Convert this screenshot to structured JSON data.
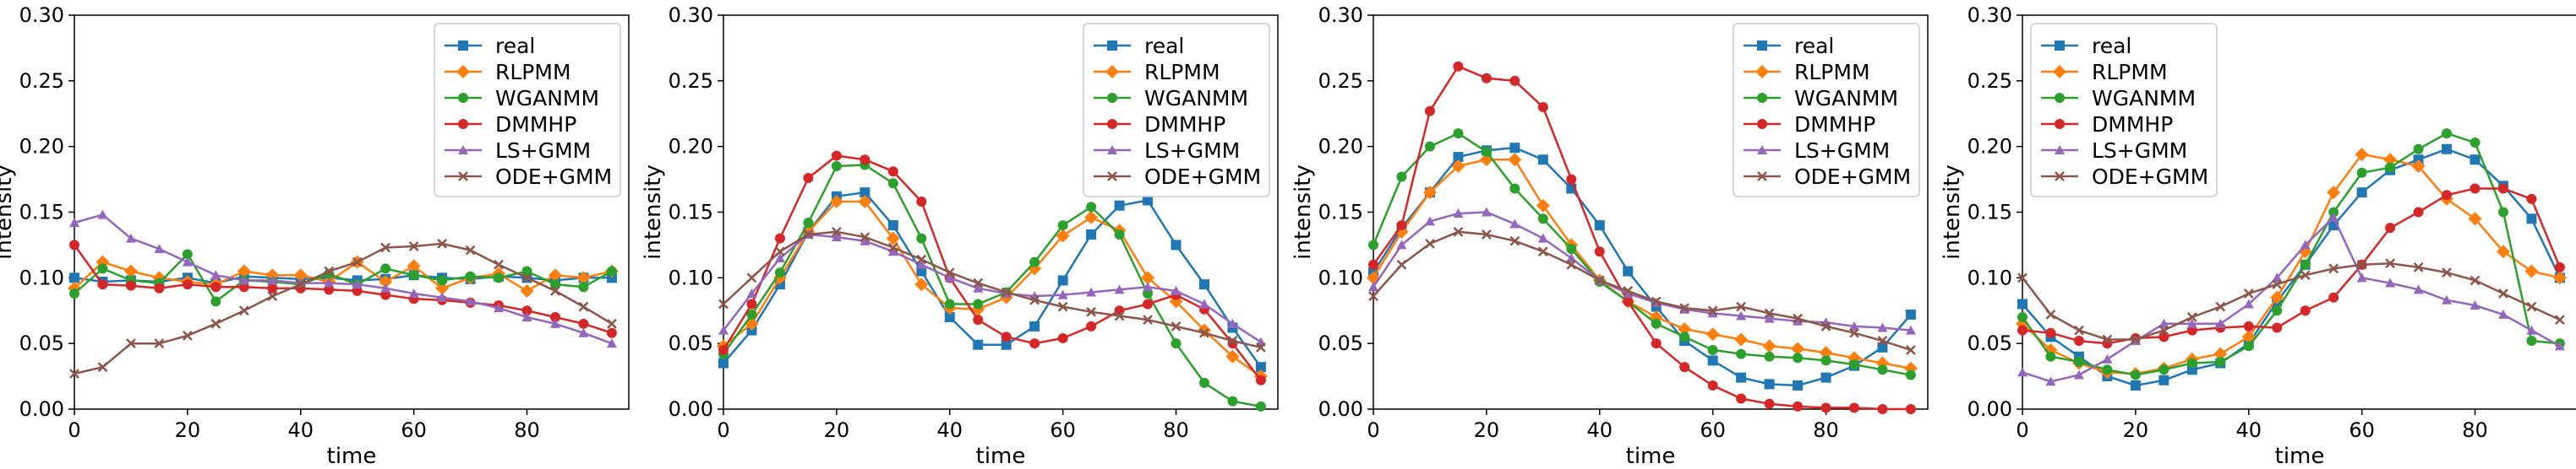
{
  "colors": {
    "real": "#1f77b4",
    "RLPMM": "#ff7f0e",
    "WGANMM": "#2ca02c",
    "DMMHP": "#d62728",
    "LS+GMM": "#9467bd",
    "ODE+GMM": "#8c564b"
  },
  "chart_data": [
    {
      "type": "line",
      "xlabel": "time",
      "ylabel": "intensity",
      "xlim": [
        0,
        98
      ],
      "ylim": [
        0,
        0.3
      ],
      "xticks": [
        "0",
        "20",
        "40",
        "60",
        "80"
      ],
      "yticks": [
        "0.00",
        "0.05",
        "0.10",
        "0.15",
        "0.20",
        "0.25",
        "0.30"
      ],
      "legend_position": "upper-right",
      "x": [
        0,
        5,
        10,
        15,
        20,
        25,
        30,
        35,
        40,
        45,
        50,
        55,
        60,
        65,
        70,
        75,
        80,
        85,
        90,
        95
      ],
      "series": [
        {
          "name": "real",
          "marker": "square",
          "values": [
            0.1,
            0.097,
            0.098,
            0.097,
            0.1,
            0.096,
            0.101,
            0.1,
            0.099,
            0.1,
            0.098,
            0.099,
            0.102,
            0.1,
            0.099,
            0.101,
            0.1,
            0.098,
            0.1,
            0.1
          ]
        },
        {
          "name": "RLPMM",
          "marker": "diamond",
          "values": [
            0.092,
            0.112,
            0.105,
            0.1,
            0.097,
            0.095,
            0.105,
            0.102,
            0.102,
            0.097,
            0.112,
            0.097,
            0.109,
            0.092,
            0.1,
            0.103,
            0.09,
            0.102,
            0.1,
            0.105
          ]
        },
        {
          "name": "WGANMM",
          "marker": "circle",
          "values": [
            0.088,
            0.107,
            0.098,
            0.096,
            0.118,
            0.082,
            0.098,
            0.097,
            0.095,
            0.103,
            0.095,
            0.107,
            0.102,
            0.098,
            0.101,
            0.1,
            0.105,
            0.095,
            0.093,
            0.105
          ]
        },
        {
          "name": "DMMHP",
          "marker": "circle",
          "values": [
            0.125,
            0.095,
            0.094,
            0.092,
            0.095,
            0.093,
            0.093,
            0.092,
            0.092,
            0.091,
            0.09,
            0.087,
            0.084,
            0.083,
            0.081,
            0.079,
            0.075,
            0.07,
            0.065,
            0.058
          ]
        },
        {
          "name": "LS+GMM",
          "marker": "triangle",
          "values": [
            0.142,
            0.148,
            0.13,
            0.122,
            0.112,
            0.102,
            0.098,
            0.098,
            0.096,
            0.096,
            0.095,
            0.092,
            0.088,
            0.085,
            0.082,
            0.077,
            0.07,
            0.065,
            0.058,
            0.05
          ]
        },
        {
          "name": "ODE+GMM",
          "marker": "x",
          "values": [
            0.027,
            0.032,
            0.05,
            0.05,
            0.056,
            0.065,
            0.075,
            0.086,
            0.095,
            0.105,
            0.112,
            0.123,
            0.124,
            0.126,
            0.121,
            0.11,
            0.1,
            0.09,
            0.078,
            0.065
          ]
        }
      ]
    },
    {
      "type": "line",
      "xlabel": "time",
      "ylabel": "intensity",
      "xlim": [
        0,
        98
      ],
      "ylim": [
        0,
        0.3
      ],
      "xticks": [
        "0",
        "20",
        "40",
        "60",
        "80"
      ],
      "yticks": [
        "0.00",
        "0.05",
        "0.10",
        "0.15",
        "0.20",
        "0.25",
        "0.30"
      ],
      "legend_position": "upper-right",
      "x": [
        0,
        5,
        10,
        15,
        20,
        25,
        30,
        35,
        40,
        45,
        50,
        55,
        60,
        65,
        70,
        75,
        80,
        85,
        90,
        95
      ],
      "series": [
        {
          "name": "real",
          "marker": "square",
          "values": [
            0.035,
            0.06,
            0.095,
            0.135,
            0.162,
            0.165,
            0.14,
            0.105,
            0.07,
            0.049,
            0.049,
            0.063,
            0.098,
            0.133,
            0.155,
            0.159,
            0.125,
            0.095,
            0.062,
            0.032
          ]
        },
        {
          "name": "RLPMM",
          "marker": "diamond",
          "values": [
            0.048,
            0.065,
            0.1,
            0.135,
            0.158,
            0.158,
            0.13,
            0.095,
            0.077,
            0.076,
            0.085,
            0.107,
            0.132,
            0.146,
            0.136,
            0.1,
            0.082,
            0.06,
            0.04,
            0.025
          ]
        },
        {
          "name": "WGANMM",
          "marker": "circle",
          "values": [
            0.042,
            0.072,
            0.104,
            0.142,
            0.185,
            0.186,
            0.172,
            0.13,
            0.08,
            0.08,
            0.089,
            0.112,
            0.14,
            0.154,
            0.133,
            0.088,
            0.05,
            0.02,
            0.006,
            0.002
          ]
        },
        {
          "name": "DMMHP",
          "marker": "circle",
          "values": [
            0.045,
            0.08,
            0.13,
            0.176,
            0.193,
            0.19,
            0.181,
            0.158,
            0.1,
            0.068,
            0.055,
            0.05,
            0.054,
            0.063,
            0.075,
            0.08,
            0.087,
            0.076,
            0.05,
            0.022
          ]
        },
        {
          "name": "LS+GMM",
          "marker": "triangle",
          "values": [
            0.06,
            0.088,
            0.115,
            0.133,
            0.131,
            0.128,
            0.12,
            0.11,
            0.1,
            0.092,
            0.088,
            0.086,
            0.087,
            0.089,
            0.091,
            0.093,
            0.09,
            0.08,
            0.065,
            0.051
          ]
        },
        {
          "name": "ODE+GMM",
          "marker": "x",
          "values": [
            0.08,
            0.1,
            0.12,
            0.133,
            0.135,
            0.131,
            0.123,
            0.114,
            0.104,
            0.096,
            0.089,
            0.083,
            0.078,
            0.074,
            0.071,
            0.068,
            0.063,
            0.058,
            0.052,
            0.047
          ]
        }
      ]
    },
    {
      "type": "line",
      "xlabel": "time",
      "ylabel": "intensity",
      "xlim": [
        0,
        98
      ],
      "ylim": [
        0,
        0.3
      ],
      "xticks": [
        "0",
        "20",
        "40",
        "60",
        "80"
      ],
      "yticks": [
        "0.00",
        "0.05",
        "0.10",
        "0.15",
        "0.20",
        "0.25",
        "0.30"
      ],
      "legend_position": "upper-right",
      "x": [
        0,
        5,
        10,
        15,
        20,
        25,
        30,
        35,
        40,
        45,
        50,
        55,
        60,
        65,
        70,
        75,
        80,
        85,
        90,
        95
      ],
      "series": [
        {
          "name": "real",
          "marker": "square",
          "values": [
            0.104,
            0.138,
            0.165,
            0.192,
            0.197,
            0.199,
            0.19,
            0.168,
            0.14,
            0.105,
            0.078,
            0.052,
            0.037,
            0.024,
            0.019,
            0.018,
            0.024,
            0.033,
            0.047,
            0.072
          ]
        },
        {
          "name": "RLPMM",
          "marker": "diamond",
          "values": [
            0.1,
            0.135,
            0.165,
            0.185,
            0.19,
            0.19,
            0.155,
            0.125,
            0.098,
            0.082,
            0.07,
            0.061,
            0.057,
            0.053,
            0.048,
            0.046,
            0.043,
            0.039,
            0.035,
            0.031
          ]
        },
        {
          "name": "WGANMM",
          "marker": "circle",
          "values": [
            0.125,
            0.177,
            0.2,
            0.21,
            0.196,
            0.168,
            0.145,
            0.122,
            0.097,
            0.082,
            0.065,
            0.055,
            0.045,
            0.042,
            0.04,
            0.039,
            0.037,
            0.034,
            0.03,
            0.026
          ]
        },
        {
          "name": "DMMHP",
          "marker": "circle",
          "values": [
            0.11,
            0.14,
            0.227,
            0.261,
            0.252,
            0.25,
            0.23,
            0.175,
            0.12,
            0.082,
            0.05,
            0.032,
            0.018,
            0.008,
            0.004,
            0.002,
            0.001,
            0.001,
            0.0,
            0.0
          ]
        },
        {
          "name": "LS+GMM",
          "marker": "triangle",
          "values": [
            0.093,
            0.125,
            0.143,
            0.149,
            0.15,
            0.141,
            0.13,
            0.115,
            0.098,
            0.088,
            0.081,
            0.076,
            0.073,
            0.071,
            0.069,
            0.067,
            0.066,
            0.063,
            0.062,
            0.06
          ]
        },
        {
          "name": "ODE+GMM",
          "marker": "x",
          "values": [
            0.086,
            0.11,
            0.126,
            0.135,
            0.133,
            0.128,
            0.12,
            0.11,
            0.098,
            0.09,
            0.082,
            0.077,
            0.075,
            0.078,
            0.073,
            0.069,
            0.063,
            0.058,
            0.052,
            0.045
          ]
        }
      ]
    },
    {
      "type": "line",
      "xlabel": "time",
      "ylabel": "intensity",
      "xlim": [
        0,
        98
      ],
      "ylim": [
        0,
        0.3
      ],
      "xticks": [
        "0",
        "20",
        "40",
        "60",
        "80"
      ],
      "yticks": [
        "0.00",
        "0.05",
        "0.10",
        "0.15",
        "0.20",
        "0.25",
        "0.30"
      ],
      "legend_position": "upper-left",
      "x": [
        0,
        5,
        10,
        15,
        20,
        25,
        30,
        35,
        40,
        45,
        50,
        55,
        60,
        65,
        70,
        75,
        80,
        85,
        90,
        95
      ],
      "series": [
        {
          "name": "real",
          "marker": "square",
          "values": [
            0.08,
            0.055,
            0.04,
            0.025,
            0.018,
            0.022,
            0.03,
            0.035,
            0.05,
            0.082,
            0.11,
            0.14,
            0.165,
            0.182,
            0.19,
            0.198,
            0.19,
            0.17,
            0.145,
            0.1
          ]
        },
        {
          "name": "RLPMM",
          "marker": "diamond",
          "values": [
            0.065,
            0.045,
            0.035,
            0.028,
            0.027,
            0.031,
            0.038,
            0.042,
            0.055,
            0.085,
            0.12,
            0.165,
            0.194,
            0.19,
            0.185,
            0.16,
            0.145,
            0.12,
            0.105,
            0.1
          ]
        },
        {
          "name": "WGANMM",
          "marker": "circle",
          "values": [
            0.07,
            0.04,
            0.036,
            0.03,
            0.026,
            0.03,
            0.035,
            0.036,
            0.048,
            0.075,
            0.11,
            0.15,
            0.18,
            0.184,
            0.198,
            0.21,
            0.203,
            0.15,
            0.052,
            0.05
          ]
        },
        {
          "name": "DMMHP",
          "marker": "circle",
          "values": [
            0.06,
            0.058,
            0.052,
            0.05,
            0.054,
            0.055,
            0.06,
            0.062,
            0.063,
            0.062,
            0.075,
            0.085,
            0.11,
            0.138,
            0.15,
            0.163,
            0.168,
            0.168,
            0.16,
            0.108
          ]
        },
        {
          "name": "LS+GMM",
          "marker": "triangle",
          "values": [
            0.028,
            0.021,
            0.026,
            0.038,
            0.052,
            0.065,
            0.065,
            0.065,
            0.08,
            0.1,
            0.125,
            0.146,
            0.1,
            0.096,
            0.091,
            0.083,
            0.079,
            0.072,
            0.06,
            0.048
          ]
        },
        {
          "name": "ODE+GMM",
          "marker": "x",
          "values": [
            0.1,
            0.072,
            0.06,
            0.053,
            0.053,
            0.06,
            0.07,
            0.078,
            0.088,
            0.095,
            0.102,
            0.107,
            0.11,
            0.111,
            0.108,
            0.104,
            0.098,
            0.088,
            0.078,
            0.068
          ]
        }
      ]
    }
  ]
}
